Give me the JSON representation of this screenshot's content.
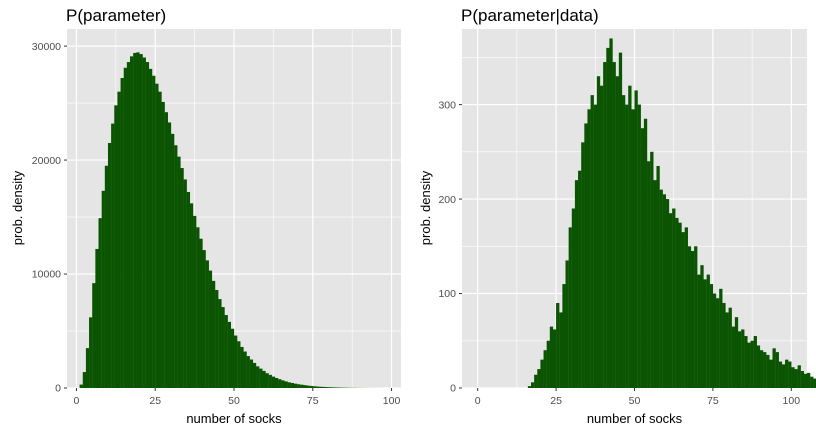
{
  "colors": {
    "bar": "#0b5402",
    "panel_bg": "#e5e5e5",
    "grid": "#ffffff",
    "tick": "#4d4d4d"
  },
  "chart_data": [
    {
      "type": "bar",
      "title": "P(parameter)",
      "xlabel": "number of socks",
      "ylabel": "prob. density",
      "xlim": [
        -3,
        103
      ],
      "ylim": [
        0,
        31500
      ],
      "xticks": [
        0,
        25,
        50,
        75,
        100
      ],
      "yticks": [
        0,
        10000,
        20000,
        30000
      ],
      "xtick_labels": [
        "0",
        "25",
        "50",
        "75",
        "100"
      ],
      "ytick_labels": [
        "0",
        "10000",
        "20000",
        "30000"
      ],
      "grid": true,
      "bin_start": 1,
      "bin_width": 1,
      "values": [
        300,
        1400,
        3500,
        6200,
        9200,
        12200,
        14900,
        17300,
        19500,
        21500,
        23200,
        24800,
        26000,
        27200,
        28100,
        28600,
        29100,
        29400,
        29450,
        29300,
        29000,
        28600,
        28000,
        27400,
        26700,
        26000,
        25100,
        24200,
        23300,
        22300,
        21300,
        20300,
        19300,
        18300,
        17200,
        16200,
        15100,
        14100,
        13100,
        12100,
        11200,
        10300,
        9400,
        8600,
        7800,
        7100,
        6400,
        5800,
        5200,
        4600,
        4100,
        3600,
        3200,
        2800,
        2500,
        2200,
        1900,
        1700,
        1500,
        1300,
        1150,
        1000,
        880,
        770,
        670,
        580,
        500,
        440,
        380,
        330,
        290,
        250,
        210,
        180,
        150,
        130,
        110,
        95,
        80,
        68,
        57,
        48,
        40,
        33,
        27,
        22,
        18,
        14,
        11,
        9,
        7,
        5,
        4,
        3,
        2,
        1,
        1,
        0,
        0,
        0
      ]
    },
    {
      "type": "bar",
      "title": "P(parameter|data)",
      "xlabel": "number of socks",
      "ylabel": "prob. density",
      "xlim": [
        -5,
        105
      ],
      "ylim": [
        0,
        380
      ],
      "xticks": [
        0,
        25,
        50,
        75,
        100
      ],
      "yticks": [
        0,
        100,
        200,
        300
      ],
      "xtick_labels": [
        "0",
        "25",
        "50",
        "75",
        "100"
      ],
      "ytick_labels": [
        "0",
        "100",
        "200",
        "300"
      ],
      "grid": true,
      "bin_start": 16,
      "bin_width": 1,
      "values": [
        2,
        6,
        14,
        20,
        30,
        40,
        50,
        65,
        62,
        90,
        80,
        110,
        135,
        170,
        190,
        220,
        230,
        260,
        280,
        295,
        310,
        300,
        330,
        320,
        345,
        360,
        370,
        345,
        330,
        355,
        310,
        300,
        320,
        295,
        315,
        300,
        275,
        285,
        240,
        250,
        220,
        235,
        210,
        205,
        200,
        185,
        190,
        180,
        175,
        165,
        170,
        150,
        145,
        150,
        120,
        130,
        115,
        120,
        110,
        100,
        95,
        105,
        90,
        80,
        85,
        65,
        75,
        60,
        62,
        55,
        48,
        50,
        55,
        45,
        40,
        38,
        35,
        30,
        42,
        38,
        28,
        25,
        30,
        28,
        22,
        20,
        24,
        18,
        15,
        16,
        12,
        10,
        14,
        12,
        8,
        9,
        6,
        7
      ]
    }
  ]
}
